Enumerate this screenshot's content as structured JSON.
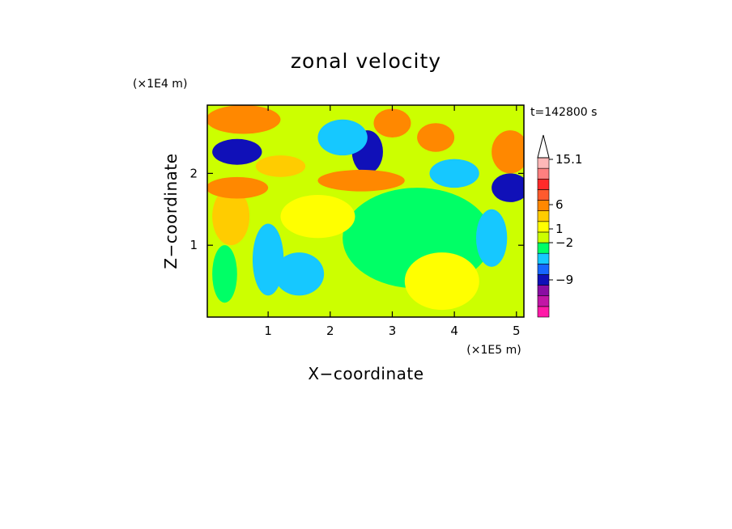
{
  "chart_data": {
    "type": "heatmap",
    "title": "zonal velocity",
    "xlabel": "X−coordinate",
    "ylabel": "Z−coordinate",
    "x_unit": "(×1E5 m)",
    "y_unit": "(×1E4 m)",
    "time_label": "t=142800 s",
    "xlim": [
      0.02,
      5.12
    ],
    "ylim": [
      0,
      2.95
    ],
    "x_ticks": [
      1,
      2,
      3,
      4,
      5
    ],
    "y_ticks": [
      1,
      2
    ],
    "x_tick_labels": [
      "1",
      "2",
      "3",
      "4",
      "5"
    ],
    "y_tick_labels": [
      "1",
      "2"
    ],
    "colorbar": {
      "levels_labeled": [
        "15.1",
        "6",
        "1",
        "−2",
        "−9"
      ],
      "colors": [
        "#ff1aa8",
        "#c216a6",
        "#8a0da3",
        "#1010b8",
        "#1666ff",
        "#16c8ff",
        "#00ff66",
        "#ccff00",
        "#ffff00",
        "#ffcc00",
        "#ff8800",
        "#ff5a2e",
        "#ff2a2a",
        "#ff8080",
        "#ffb8b8"
      ],
      "extend_max_arrow": true
    },
    "blobs": [
      {
        "cx": 0.5,
        "cy": 2.3,
        "rx": 0.4,
        "ry": 0.18,
        "class": "#1010b8"
      },
      {
        "cx": 0.6,
        "cy": 2.75,
        "rx": 0.6,
        "ry": 0.2,
        "class": "#ff8800"
      },
      {
        "cx": 2.6,
        "cy": 2.3,
        "rx": 0.25,
        "ry": 0.3,
        "class": "#1010b8"
      },
      {
        "cx": 3.7,
        "cy": 2.5,
        "rx": 0.3,
        "ry": 0.2,
        "class": "#ff8800"
      },
      {
        "cx": 2.2,
        "cy": 2.5,
        "rx": 0.4,
        "ry": 0.25,
        "class": "#16c8ff"
      },
      {
        "cx": 4.0,
        "cy": 2.0,
        "rx": 0.4,
        "ry": 0.2,
        "class": "#16c8ff"
      },
      {
        "cx": 4.9,
        "cy": 1.8,
        "rx": 0.3,
        "ry": 0.2,
        "class": "#1010b8"
      },
      {
        "cx": 3.4,
        "cy": 1.1,
        "rx": 1.2,
        "ry": 0.7,
        "class": "#00ff66"
      },
      {
        "cx": 3.8,
        "cy": 0.5,
        "rx": 0.6,
        "ry": 0.4,
        "class": "#ffff00"
      },
      {
        "cx": 1.8,
        "cy": 1.4,
        "rx": 0.6,
        "ry": 0.3,
        "class": "#ffff00"
      },
      {
        "cx": 2.5,
        "cy": 1.9,
        "rx": 0.7,
        "ry": 0.15,
        "class": "#ff8800"
      },
      {
        "cx": 1.5,
        "cy": 0.6,
        "rx": 0.4,
        "ry": 0.3,
        "class": "#16c8ff"
      },
      {
        "cx": 0.4,
        "cy": 1.4,
        "rx": 0.3,
        "ry": 0.4,
        "class": "#ffcc00"
      },
      {
        "cx": 4.9,
        "cy": 2.3,
        "rx": 0.3,
        "ry": 0.3,
        "class": "#ff8800"
      },
      {
        "cx": 0.5,
        "cy": 1.8,
        "rx": 0.5,
        "ry": 0.15,
        "class": "#ff8800"
      },
      {
        "cx": 1.0,
        "cy": 0.8,
        "rx": 0.25,
        "ry": 0.5,
        "class": "#16c8ff"
      },
      {
        "cx": 4.6,
        "cy": 1.1,
        "rx": 0.25,
        "ry": 0.4,
        "class": "#16c8ff"
      },
      {
        "cx": 0.3,
        "cy": 0.6,
        "rx": 0.2,
        "ry": 0.4,
        "class": "#00ff66"
      },
      {
        "cx": 3.0,
        "cy": 2.7,
        "rx": 0.3,
        "ry": 0.2,
        "class": "#ff8800"
      },
      {
        "cx": 1.2,
        "cy": 2.1,
        "rx": 0.4,
        "ry": 0.15,
        "class": "#ffcc00"
      }
    ]
  }
}
